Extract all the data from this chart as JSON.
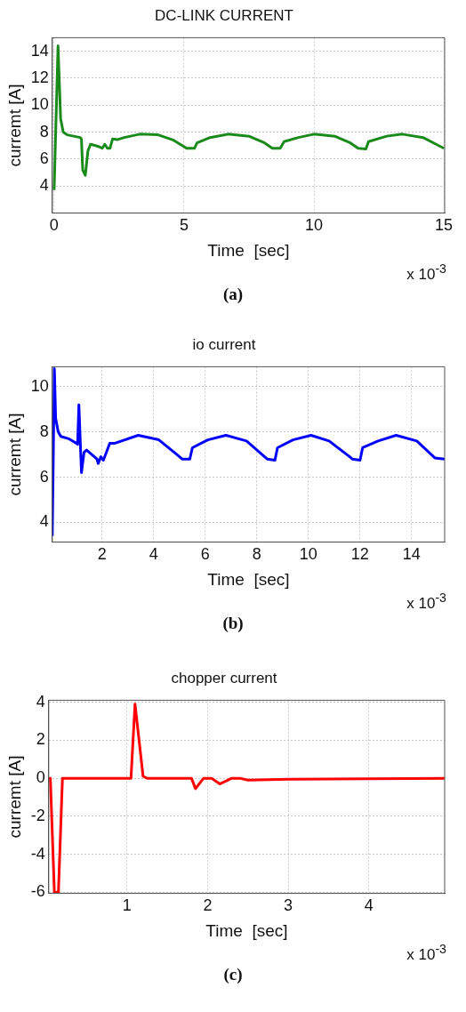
{
  "chart_data": [
    {
      "type": "line",
      "title": "DC-LINK CURRENT",
      "xlabel": "Time  [sec]",
      "ylabel": "curremt [A]",
      "color": "#1a8a1a",
      "x": [
        0,
        0.15,
        0.25,
        0.35,
        0.5,
        1.0,
        1.05,
        1.1,
        1.2,
        1.3,
        1.4,
        1.6,
        1.75,
        1.85,
        1.95,
        2.05,
        2.15,
        2.25,
        2.45,
        2.7,
        3.3,
        4,
        4.6,
        5.1,
        5.4,
        5.5,
        6,
        6.7,
        7.5,
        8.1,
        8.4,
        8.7,
        8.85,
        9.4,
        10,
        10.8,
        11.4,
        11.7,
        12,
        12.1,
        12.8,
        13.4,
        14.2,
        14.8,
        15
      ],
      "values": [
        3.7,
        14.4,
        9,
        8,
        7.8,
        7.6,
        7.5,
        5.2,
        4.8,
        6.6,
        7.1,
        7.0,
        6.9,
        6.8,
        7.1,
        6.8,
        6.8,
        7.5,
        7.45,
        7.6,
        7.85,
        7.8,
        7.4,
        6.8,
        6.8,
        7.2,
        7.6,
        7.85,
        7.7,
        7.2,
        6.8,
        6.8,
        7.3,
        7.6,
        7.85,
        7.7,
        7.2,
        6.8,
        6.75,
        7.3,
        7.7,
        7.85,
        7.6,
        7.0,
        6.8
      ],
      "xlim": [
        -0.07,
        15.03
      ],
      "xticks": [
        0,
        5,
        10,
        15
      ],
      "ylim": [
        2,
        15
      ],
      "yticks": [
        4,
        6,
        8,
        10,
        12,
        14
      ],
      "grid": true,
      "annotations": [
        "x 10$^{-3}$",
        "(a)"
      ]
    },
    {
      "type": "line",
      "title": "io current",
      "xlabel": "Time  [sec]",
      "ylabel": "curremt [A]",
      "color": "#0000ff",
      "x": [
        0.07,
        0.15,
        0.2,
        0.3,
        0.4,
        0.7,
        1.0,
        1.05,
        1.1,
        1.2,
        1.3,
        1.4,
        1.6,
        1.8,
        1.85,
        1.95,
        2.05,
        2.3,
        2.5,
        3.4,
        4.2,
        4.9,
        5.1,
        5.4,
        5.5,
        6.1,
        6.8,
        7.6,
        8.3,
        8.4,
        8.7,
        8.8,
        9.4,
        10.1,
        10.8,
        11.6,
        11.7,
        12,
        12.1,
        12.7,
        13.4,
        14.2,
        14.9,
        15.28
      ],
      "values": [
        3.4,
        10.8,
        8.6,
        8,
        7.8,
        7.7,
        7.5,
        7.45,
        9.2,
        6.2,
        7.1,
        7.2,
        7.0,
        6.8,
        6.6,
        6.9,
        6.75,
        7.5,
        7.5,
        7.85,
        7.65,
        7.0,
        6.8,
        6.8,
        7.3,
        7.65,
        7.85,
        7.6,
        6.9,
        6.8,
        6.75,
        7.3,
        7.65,
        7.85,
        7.6,
        6.9,
        6.8,
        6.75,
        7.3,
        7.6,
        7.85,
        7.6,
        6.85,
        6.8
      ],
      "xlim": [
        0.07,
        15.28
      ],
      "xticks": [
        2,
        4,
        6,
        8,
        10,
        12,
        14
      ],
      "ylim": [
        3.13,
        10.88
      ],
      "yticks": [
        4,
        6,
        8,
        10
      ],
      "grid": true,
      "annotations": [
        "x 10$^{-3}$",
        "(b)"
      ]
    },
    {
      "type": "line",
      "title": "chopper current",
      "xlabel": "Time  [sec]",
      "ylabel": "curremt [A]",
      "color": "#ff0000",
      "x": [
        0.03,
        0.05,
        0.1,
        0.15,
        0.2,
        0.25,
        1.05,
        1.1,
        1.2,
        1.25,
        1.8,
        1.85,
        1.95,
        2.05,
        2.15,
        2.3,
        2.4,
        2.5,
        3,
        4.94
      ],
      "values": [
        0,
        0,
        -6,
        -6,
        0,
        0,
        0,
        3.9,
        0.1,
        0,
        0,
        -0.55,
        0,
        0,
        -0.3,
        0,
        0,
        -0.1,
        -0.05,
        0
      ],
      "xlim": [
        0.03,
        4.94
      ],
      "xticks": [
        1,
        2,
        3,
        4
      ],
      "ylim": [
        -6.05,
        4.1
      ],
      "yticks": [
        -6,
        -4,
        -2,
        0,
        2,
        4
      ],
      "grid": true,
      "annotations": [
        "x 10$^{-3}$",
        "(c)"
      ]
    }
  ]
}
